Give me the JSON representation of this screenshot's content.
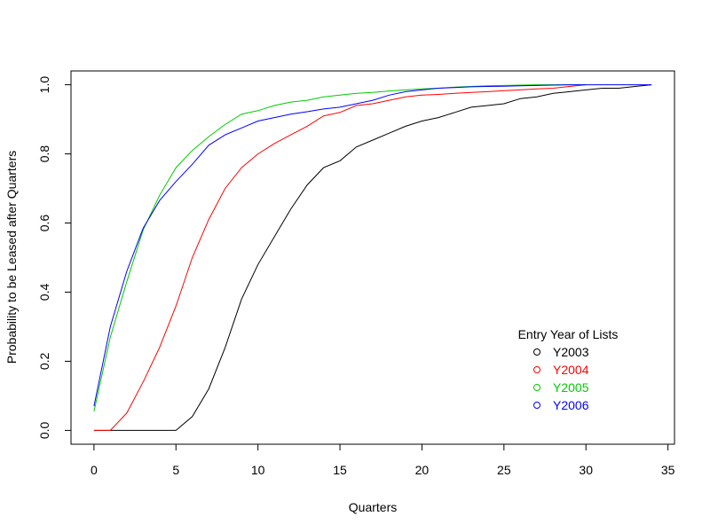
{
  "chart_data": {
    "type": "line",
    "title": "",
    "xlabel": "Quarters",
    "ylabel": "Probability to be Leased after Quarters",
    "xlim": [
      -1.4,
      35.4
    ],
    "ylim": [
      -0.04,
      1.04
    ],
    "xticks": [
      0,
      5,
      10,
      15,
      20,
      25,
      30,
      35
    ],
    "yticks": [
      0.0,
      0.2,
      0.4,
      0.6,
      0.8,
      1.0
    ],
    "xtick_labels": [
      "0",
      "5",
      "10",
      "15",
      "20",
      "25",
      "30",
      "35"
    ],
    "ytick_labels": [
      "0.0",
      "0.2",
      "0.4",
      "0.6",
      "0.8",
      "1.0"
    ],
    "grid": false,
    "legend": {
      "title": "Entry Year of Lists",
      "placement": "bottom-right",
      "marker": "open-circle"
    },
    "series": [
      {
        "name": "Y2003",
        "color": "#000000",
        "x": [
          0,
          1,
          2,
          3,
          4,
          5,
          6,
          7,
          8,
          9,
          10,
          11,
          12,
          13,
          14,
          15,
          16,
          17,
          18,
          19,
          20,
          21,
          22,
          23,
          24,
          25,
          26,
          27,
          28,
          29,
          30,
          31,
          32,
          33,
          34
        ],
        "values": [
          0,
          0,
          0,
          0,
          0,
          0,
          0.04,
          0.12,
          0.24,
          0.38,
          0.48,
          0.56,
          0.64,
          0.71,
          0.76,
          0.78,
          0.82,
          0.84,
          0.86,
          0.88,
          0.895,
          0.905,
          0.92,
          0.935,
          0.94,
          0.945,
          0.96,
          0.965,
          0.975,
          0.98,
          0.985,
          0.99,
          0.99,
          0.995,
          1.0
        ]
      },
      {
        "name": "Y2004",
        "color": "#ff0000",
        "x": [
          0,
          1,
          2,
          3,
          4,
          5,
          6,
          7,
          8,
          9,
          10,
          11,
          12,
          13,
          14,
          15,
          16,
          17,
          18,
          19,
          20,
          21,
          22,
          23,
          24,
          25,
          26,
          27,
          28,
          29,
          30
        ],
        "values": [
          0,
          0,
          0.05,
          0.14,
          0.24,
          0.36,
          0.5,
          0.61,
          0.7,
          0.76,
          0.8,
          0.83,
          0.855,
          0.88,
          0.91,
          0.92,
          0.94,
          0.945,
          0.955,
          0.965,
          0.97,
          0.972,
          0.975,
          0.978,
          0.98,
          0.983,
          0.985,
          0.988,
          0.99,
          0.995,
          1.0
        ]
      },
      {
        "name": "Y2005",
        "color": "#00cc00",
        "x": [
          0,
          1,
          2,
          3,
          4,
          5,
          6,
          7,
          8,
          9,
          10,
          11,
          12,
          13,
          14,
          15,
          16,
          17,
          18,
          19,
          20,
          21,
          22,
          23,
          24,
          25,
          26,
          27,
          28,
          29,
          30
        ],
        "values": [
          0.055,
          0.27,
          0.43,
          0.58,
          0.68,
          0.76,
          0.81,
          0.85,
          0.885,
          0.915,
          0.925,
          0.94,
          0.95,
          0.955,
          0.965,
          0.97,
          0.975,
          0.978,
          0.982,
          0.985,
          0.988,
          0.99,
          0.993,
          0.995,
          0.997,
          0.998,
          0.999,
          1.0,
          1.0,
          1.0,
          1.0
        ]
      },
      {
        "name": "Y2006",
        "color": "#0000ff",
        "x": [
          0,
          1,
          2,
          3,
          4,
          5,
          6,
          7,
          8,
          9,
          10,
          11,
          12,
          13,
          14,
          15,
          16,
          17,
          18,
          19,
          20,
          21,
          22,
          23,
          24,
          25,
          26,
          27,
          28,
          29,
          30,
          31,
          32,
          33,
          34
        ],
        "values": [
          0.07,
          0.3,
          0.46,
          0.585,
          0.665,
          0.72,
          0.77,
          0.825,
          0.855,
          0.875,
          0.895,
          0.905,
          0.915,
          0.922,
          0.93,
          0.935,
          0.945,
          0.955,
          0.97,
          0.98,
          0.985,
          0.99,
          0.992,
          0.994,
          0.995,
          0.996,
          0.997,
          0.998,
          0.999,
          1.0,
          1.0,
          1.0,
          1.0,
          1.0,
          1.0
        ]
      }
    ]
  }
}
